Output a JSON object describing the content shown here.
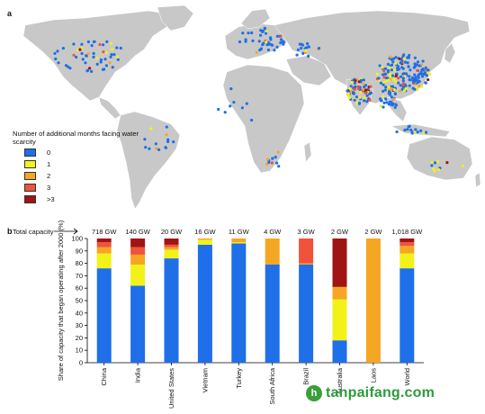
{
  "panel_a_letter": "a",
  "panel_b_letter": "b",
  "colors": {
    "c0": "#1f6fe8",
    "c1": "#f2f21a",
    "c2": "#f5a623",
    "c3": "#f0533a",
    "c4": "#a01414",
    "land": "#c8c8c8",
    "ocean": "#ffffff"
  },
  "legend": {
    "title": "Number of additional months facing water scarcity",
    "items": [
      {
        "label": "0",
        "color": "#1f6fe8"
      },
      {
        "label": "1",
        "color": "#f2f21a"
      },
      {
        "label": "2",
        "color": "#f5a623"
      },
      {
        "label": "3",
        "color": "#f0533a"
      },
      {
        "label": ">3",
        "color": "#a01414"
      }
    ]
  },
  "chart_data": {
    "type": "bar",
    "stacked": true,
    "total_capacity_label": "Total capacity",
    "categories": [
      "China",
      "India",
      "United States",
      "Vietnam",
      "Turkey",
      "South Africa",
      "Brazil",
      "Australia",
      "Laos",
      "World"
    ],
    "capacity_labels": [
      "718 GW",
      "140 GW",
      "20 GW",
      "16 GW",
      "11 GW",
      "4 GW",
      "3 GW",
      "2 GW",
      "2 GW",
      "1,018 GW"
    ],
    "series": [
      {
        "name": "0",
        "values": [
          76,
          62,
          84,
          95,
          96,
          79,
          79,
          18,
          0,
          76
        ]
      },
      {
        "name": "1",
        "values": [
          12,
          17,
          7,
          4,
          1,
          0,
          0,
          33,
          0,
          12
        ]
      },
      {
        "name": "2",
        "values": [
          5,
          8,
          2,
          1,
          3,
          21,
          1,
          10,
          100,
          6
        ]
      },
      {
        "name": "3",
        "values": [
          4,
          6,
          2,
          0,
          0,
          0,
          20,
          0,
          0,
          3
        ]
      },
      {
        "name": ">3",
        "values": [
          3,
          7,
          5,
          0,
          0,
          0,
          0,
          39,
          0,
          3
        ]
      }
    ],
    "ylabel": "Share of capacity that began operating after 2000 (%)",
    "ylim": [
      0,
      100
    ],
    "yticks": [
      0,
      10,
      20,
      30,
      40,
      50,
      60,
      70,
      80,
      90,
      100
    ],
    "grid": false,
    "legend_placement": "left (panel a)"
  },
  "watermark": {
    "logo_letter": "h",
    "text": "tanpaifang.com"
  }
}
